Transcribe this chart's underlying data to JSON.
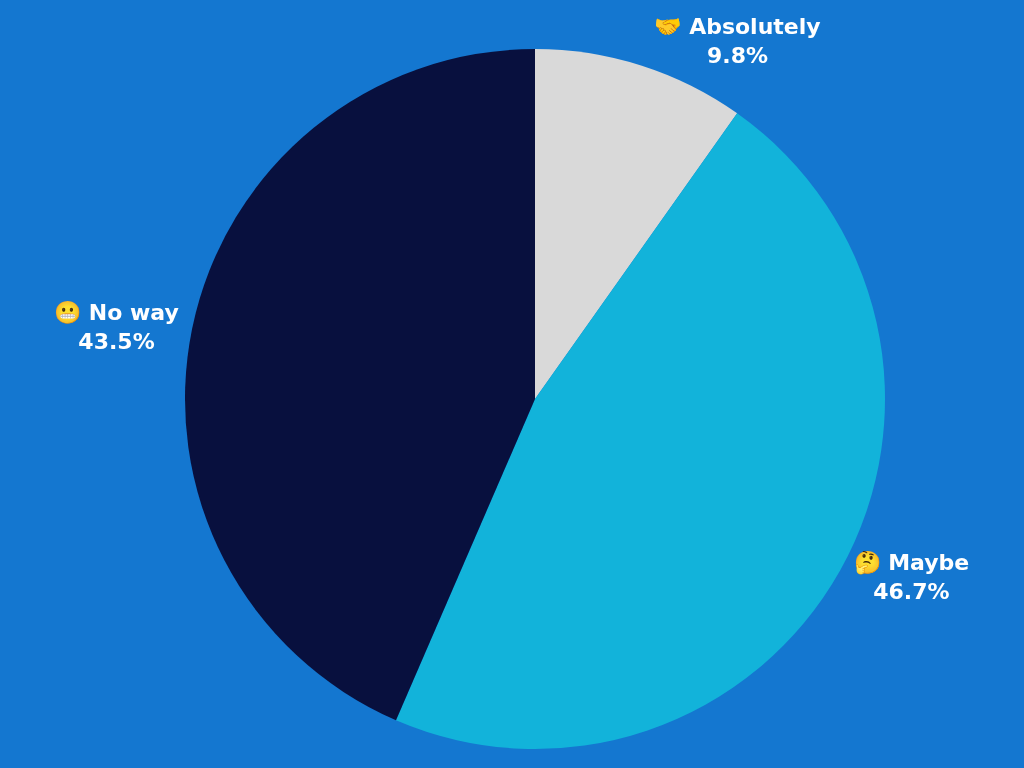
{
  "chart_data": {
    "type": "pie",
    "categories": [
      "🤝 Absolutely",
      "🤔 Maybe",
      "😬 No way"
    ],
    "values": [
      9.8,
      46.7,
      43.5
    ],
    "value_labels": [
      "9.8%",
      "46.7%",
      "43.5%"
    ],
    "colors": [
      "#d9d9d9",
      "#12b3da",
      "#08103e"
    ],
    "legend": false
  }
}
